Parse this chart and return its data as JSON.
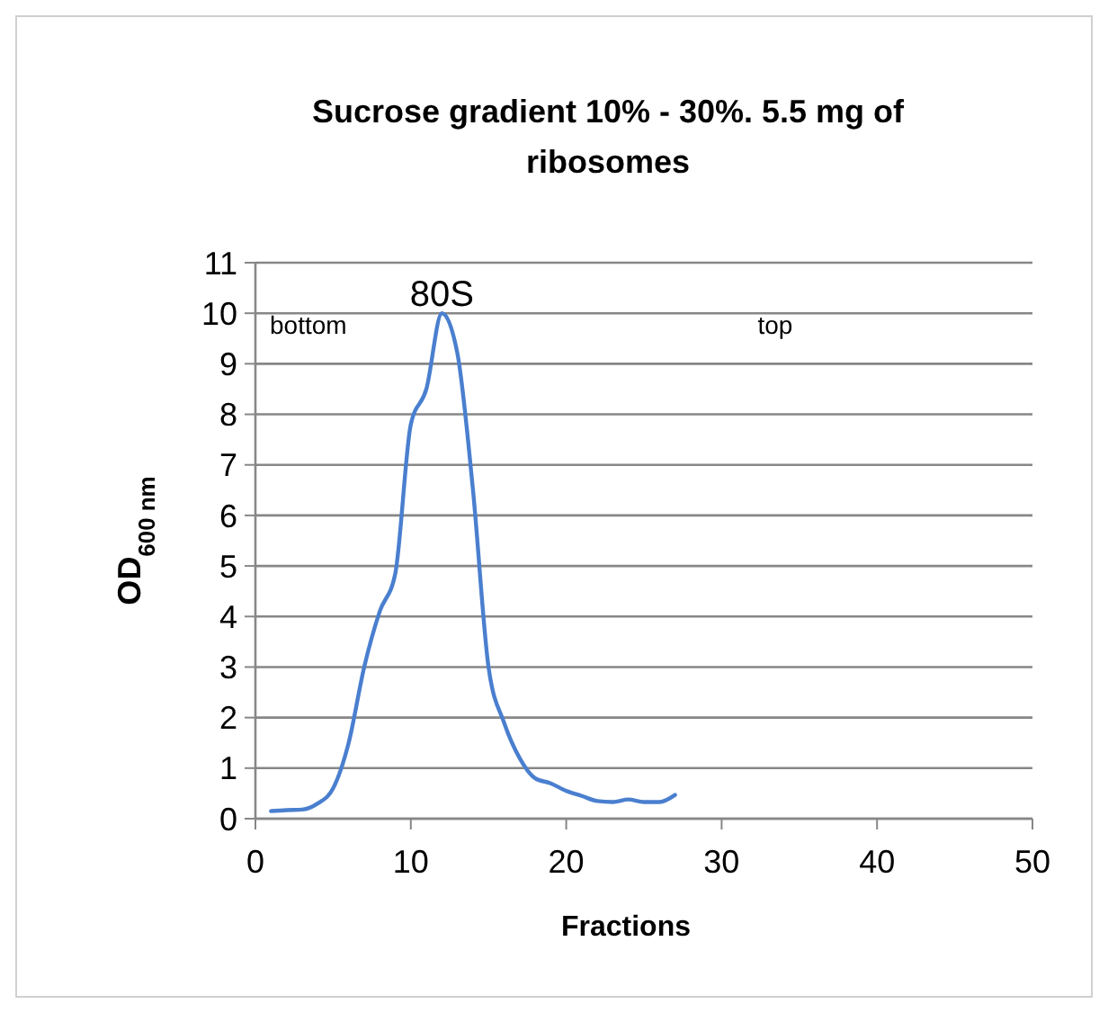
{
  "chart_data": {
    "type": "line",
    "title": "Sucrose gradient 10% - 30%. 5.5 mg of ribosomes",
    "xlabel": "Fractions",
    "ylabel": "OD$_{600 nm}$",
    "x": [
      1,
      2,
      3,
      4,
      5,
      6,
      7,
      8,
      9,
      10,
      11,
      12,
      13,
      14,
      15,
      16,
      17,
      18,
      19,
      20,
      21,
      22,
      23,
      24,
      25,
      26,
      27
    ],
    "series": [
      {
        "color": "#4a7fcf",
        "values": [
          0.15,
          0.17,
          0.18,
          0.3,
          0.6,
          1.5,
          3.0,
          4.1,
          4.85,
          7.8,
          8.5,
          10.0,
          9.2,
          6.5,
          3.0,
          1.9,
          1.2,
          0.8,
          0.7,
          0.55,
          0.45,
          0.35,
          0.33,
          0.38,
          0.33,
          0.33,
          0.47
        ]
      }
    ],
    "annotations": [
      {
        "text": "80S",
        "x": 12,
        "y": 10
      },
      "bottom",
      "top"
    ],
    "xlim": [
      0,
      50
    ],
    "xticks": [
      0,
      10,
      20,
      30,
      40,
      50
    ],
    "ylim": [
      0,
      11
    ],
    "yticks": [
      0,
      1,
      2,
      3,
      4,
      5,
      6,
      7,
      8,
      9,
      10,
      11
    ],
    "grid": "y",
    "marker": "none",
    "line_style": "solid"
  }
}
